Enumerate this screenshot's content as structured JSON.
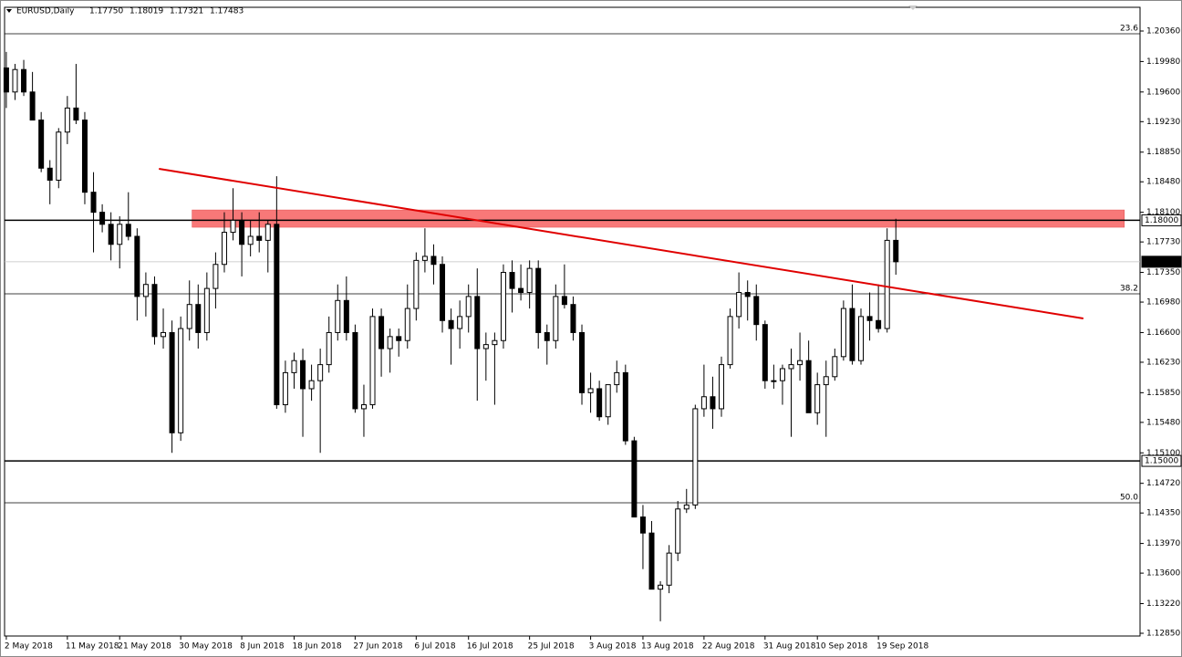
{
  "chart_data": {
    "type": "candlestick",
    "title": "EURUSD,Daily",
    "last_labels": [
      "1.17750",
      "1.18019",
      "1.17321",
      "1.17483"
    ],
    "categories": [
      "2 May 2018",
      null,
      null,
      null,
      null,
      null,
      null,
      "11 May 2018",
      null,
      null,
      null,
      null,
      null,
      "21 May 2018",
      null,
      null,
      null,
      null,
      null,
      null,
      "30 May 2018",
      null,
      null,
      null,
      null,
      null,
      null,
      "8 Jun 2018",
      null,
      null,
      null,
      null,
      null,
      "18 Jun 2018",
      null,
      null,
      null,
      null,
      null,
      null,
      "27 Jun 2018",
      null,
      null,
      null,
      null,
      null,
      null,
      "6 Jul 2018",
      null,
      null,
      null,
      null,
      null,
      "16 Jul 2018",
      null,
      null,
      null,
      null,
      null,
      null,
      "25 Jul 2018",
      null,
      null,
      null,
      null,
      null,
      null,
      "3 Aug 2018",
      null,
      null,
      null,
      null,
      null,
      "13 Aug 2018",
      null,
      null,
      null,
      null,
      null,
      null,
      "22 Aug 2018",
      null,
      null,
      null,
      null,
      null,
      null,
      "31 Aug 2018",
      null,
      null,
      null,
      null,
      null,
      "10 Sep 2018",
      null,
      null,
      null,
      null,
      null,
      null,
      "19 Sep 2018",
      null,
      null
    ],
    "open": [
      1.199,
      1.196,
      1.1988,
      1.196,
      1.1925,
      1.1865,
      1.185,
      1.191,
      1.194,
      1.1925,
      1.1835,
      1.181,
      1.1795,
      1.177,
      1.1795,
      1.178,
      1.1705,
      1.172,
      1.1655,
      1.166,
      1.1535,
      1.1665,
      1.1695,
      1.166,
      1.1715,
      1.1745,
      1.1785,
      1.18,
      1.177,
      1.178,
      1.1775,
      1.1795,
      1.157,
      1.161,
      1.1625,
      1.159,
      1.16,
      1.162,
      1.166,
      1.17,
      1.166,
      1.1565,
      1.157,
      1.168,
      1.164,
      1.1655,
      1.165,
      1.169,
      1.175,
      1.1755,
      1.1745,
      1.1675,
      1.1665,
      1.168,
      1.1705,
      1.164,
      1.1645,
      1.165,
      1.1735,
      1.1715,
      1.171,
      1.174,
      1.166,
      1.165,
      1.1705,
      1.1695,
      1.166,
      1.1585,
      1.159,
      1.1555,
      1.1595,
      1.161,
      1.1525,
      1.143,
      1.141,
      1.134,
      1.1345,
      1.1385,
      1.144,
      1.1445,
      1.1565,
      1.158,
      1.1565,
      1.162,
      1.168,
      1.171,
      1.1705,
      1.167,
      1.16,
      1.16,
      1.1615,
      1.162,
      1.1625,
      1.156,
      1.1595,
      1.1605,
      1.163,
      1.169,
      1.1625,
      1.168,
      1.1675,
      1.1665,
      1.1775
    ],
    "high": [
      1.201,
      1.1995,
      1.2,
      1.1985,
      1.1935,
      1.1875,
      1.1915,
      1.1955,
      1.1995,
      1.1935,
      1.186,
      1.182,
      1.181,
      1.1805,
      1.1835,
      1.179,
      1.1735,
      1.173,
      1.169,
      1.1675,
      1.168,
      1.1725,
      1.172,
      1.1735,
      1.176,
      1.181,
      1.184,
      1.181,
      1.18,
      1.181,
      1.18,
      1.1855,
      1.1625,
      1.1635,
      1.164,
      1.162,
      1.164,
      1.168,
      1.172,
      1.173,
      1.167,
      1.1595,
      1.169,
      1.169,
      1.1665,
      1.1665,
      1.172,
      1.176,
      1.179,
      1.177,
      1.1755,
      1.169,
      1.17,
      1.172,
      1.174,
      1.166,
      1.166,
      1.1745,
      1.175,
      1.1745,
      1.175,
      1.175,
      1.167,
      1.172,
      1.1745,
      1.1705,
      1.167,
      1.161,
      1.16,
      1.1595,
      1.1625,
      1.162,
      1.153,
      1.1445,
      1.1425,
      1.135,
      1.1395,
      1.145,
      1.1465,
      1.157,
      1.162,
      1.1605,
      1.163,
      1.169,
      1.1735,
      1.1725,
      1.172,
      1.1675,
      1.162,
      1.162,
      1.164,
      1.166,
      1.165,
      1.161,
      1.1625,
      1.164,
      1.17,
      1.172,
      1.169,
      1.171,
      1.172,
      1.179,
      1.18019
    ],
    "low": [
      1.194,
      1.195,
      1.1955,
      1.1925,
      1.186,
      1.182,
      1.184,
      1.1895,
      1.192,
      1.182,
      1.176,
      1.1785,
      1.175,
      1.174,
      1.1775,
      1.1675,
      1.168,
      1.1645,
      1.164,
      1.151,
      1.1525,
      1.165,
      1.164,
      1.165,
      1.169,
      1.1735,
      1.1775,
      1.173,
      1.1755,
      1.176,
      1.1735,
      1.1565,
      1.156,
      1.159,
      1.153,
      1.1575,
      1.151,
      1.161,
      1.165,
      1.165,
      1.156,
      1.153,
      1.1565,
      1.1605,
      1.161,
      1.163,
      1.164,
      1.1675,
      1.1735,
      1.172,
      1.166,
      1.162,
      1.164,
      1.166,
      1.1575,
      1.16,
      1.157,
      1.164,
      1.1685,
      1.17,
      1.169,
      1.164,
      1.162,
      1.164,
      1.169,
      1.165,
      1.157,
      1.156,
      1.155,
      1.1545,
      1.1585,
      1.152,
      1.143,
      1.1365,
      1.134,
      1.13,
      1.1335,
      1.1375,
      1.1435,
      1.144,
      1.1555,
      1.154,
      1.1555,
      1.1615,
      1.1665,
      1.1675,
      1.165,
      1.159,
      1.159,
      1.157,
      1.153,
      1.16,
      1.156,
      1.1545,
      1.153,
      1.16,
      1.1625,
      1.162,
      1.162,
      1.165,
      1.166,
      1.166,
      1.17321
    ],
    "close": [
      1.196,
      1.1988,
      1.196,
      1.1925,
      1.1865,
      1.185,
      1.191,
      1.194,
      1.1925,
      1.1835,
      1.181,
      1.1795,
      1.177,
      1.1795,
      1.178,
      1.1705,
      1.172,
      1.1655,
      1.166,
      1.1535,
      1.1665,
      1.1695,
      1.166,
      1.1715,
      1.1745,
      1.1785,
      1.18,
      1.177,
      1.178,
      1.1775,
      1.1795,
      1.157,
      1.161,
      1.1625,
      1.159,
      1.16,
      1.162,
      1.166,
      1.17,
      1.166,
      1.1565,
      1.157,
      1.168,
      1.164,
      1.1655,
      1.165,
      1.169,
      1.175,
      1.1755,
      1.1745,
      1.1675,
      1.1665,
      1.168,
      1.1705,
      1.164,
      1.1645,
      1.165,
      1.1735,
      1.1715,
      1.171,
      1.174,
      1.166,
      1.165,
      1.1705,
      1.1695,
      1.166,
      1.1585,
      1.159,
      1.1555,
      1.1595,
      1.161,
      1.1525,
      1.143,
      1.141,
      1.134,
      1.1345,
      1.1385,
      1.144,
      1.1445,
      1.1565,
      1.158,
      1.1565,
      1.162,
      1.168,
      1.171,
      1.1705,
      1.167,
      1.16,
      1.16,
      1.1615,
      1.162,
      1.1625,
      1.156,
      1.1595,
      1.1605,
      1.163,
      1.169,
      1.1625,
      1.168,
      1.1675,
      1.1665,
      1.1775,
      1.17483
    ],
    "up_color": "#ffffff",
    "down_color": "#000000",
    "xlim": [
      -0.2,
      130
    ],
    "ylim": [
      1.12816,
      1.20656
    ],
    "yticks": [
      {
        "value": 1.2036,
        "label": "1.20360"
      },
      {
        "value": 1.1998,
        "label": "1.19980"
      },
      {
        "value": 1.196,
        "label": "1.19600"
      },
      {
        "value": 1.1923,
        "label": "1.19230"
      },
      {
        "value": 1.1885,
        "label": "1.18850"
      },
      {
        "value": 1.1848,
        "label": "1.18480"
      },
      {
        "value": 1.181,
        "label": "1.18100"
      },
      {
        "value": 1.1773,
        "label": "1.17730"
      },
      {
        "value": 1.1735,
        "label": "1.17350"
      },
      {
        "value": 1.1698,
        "label": "1.16980"
      },
      {
        "value": 1.166,
        "label": "1.16600"
      },
      {
        "value": 1.1623,
        "label": "1.16230"
      },
      {
        "value": 1.1585,
        "label": "1.15850"
      },
      {
        "value": 1.1548,
        "label": "1.15480"
      },
      {
        "value": 1.151,
        "label": "1.15100"
      },
      {
        "value": 1.1472,
        "label": "1.14720"
      },
      {
        "value": 1.1435,
        "label": "1.14350"
      },
      {
        "value": 1.1397,
        "label": "1.13970"
      },
      {
        "value": 1.136,
        "label": "1.13600"
      },
      {
        "value": 1.1322,
        "label": "1.13220"
      },
      {
        "value": 1.1285,
        "label": "1.12850"
      }
    ],
    "levels": [
      {
        "value": 1.18,
        "label": "1.18000"
      },
      {
        "value": 1.15,
        "label": "1.15000"
      }
    ],
    "current_price": {
      "value": 1.17483,
      "label": "1.17483"
    },
    "fib_levels": [
      {
        "level": "23.6",
        "price": 1.20326
      },
      {
        "level": "38.2",
        "price": 1.17083
      },
      {
        "level": "50.0",
        "price": 1.14477
      }
    ],
    "zone": {
      "x": [
        21.3,
        128.2
      ],
      "y": [
        1.17913,
        1.18129
      ],
      "color": "#f87878"
    },
    "trendline": {
      "x": [
        17.5,
        123.5
      ],
      "y": [
        1.18642,
        1.16776
      ],
      "color": "#e00000"
    }
  }
}
